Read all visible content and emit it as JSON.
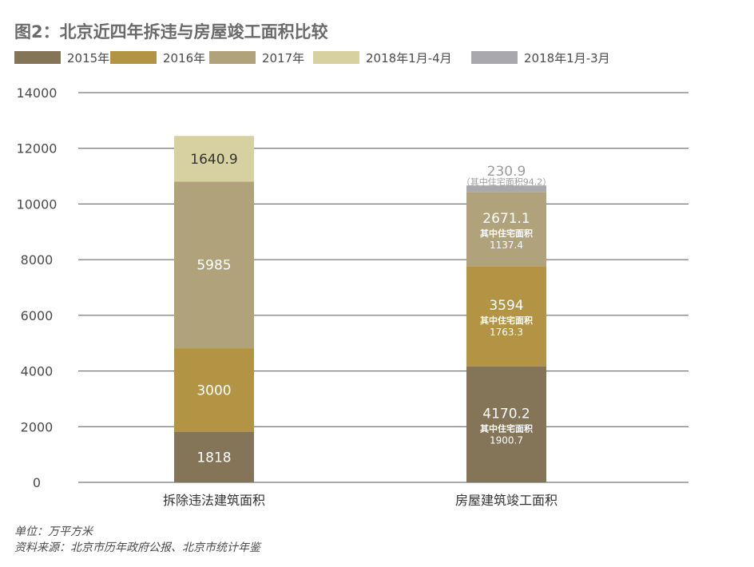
{
  "title": "图2：北京近四年拆违与房屋竣工面积比较",
  "unit_note": "单位：万平方米",
  "source_note": "资料来源：北京市历年政府公报、北京市统计年鉴",
  "colors": {
    "2015": "#847458",
    "2016": "#b39444",
    "2017": "#b0a27a",
    "2018a": "#d7d1a1",
    "2018b": "#a9a9ad",
    "grid": "#555555",
    "label_dark": "#333333",
    "label_light": "#ffffff",
    "label_grey": "#9b9b9b"
  },
  "chart_data": {
    "type": "bar",
    "stacked": true,
    "title": "图2：北京近四年拆违与房屋竣工面积比较",
    "ylabel": "",
    "xlabel": "",
    "ylim": [
      0,
      14000
    ],
    "yticks": [
      0,
      2000,
      4000,
      6000,
      8000,
      10000,
      12000,
      14000
    ],
    "grid": true,
    "legend_position": "top-left",
    "categories": [
      "拆除违法建筑面积",
      "房屋建筑竣工面积"
    ],
    "series": [
      {
        "name": "2015年",
        "color_key": "2015",
        "values": [
          1818,
          4170.2
        ],
        "labels": [
          "1818",
          "4170.2"
        ],
        "sublabels": [
          null,
          {
            "text": "其中住宅面积",
            "value": "1900.7"
          }
        ]
      },
      {
        "name": "2016年",
        "color_key": "2016",
        "values": [
          3000,
          3594
        ],
        "labels": [
          "3000",
          "3594"
        ],
        "sublabels": [
          null,
          {
            "text": "其中住宅面积",
            "value": "1763.3"
          }
        ]
      },
      {
        "name": "2017年",
        "color_key": "2017",
        "values": [
          5985,
          2671.1
        ],
        "labels": [
          "5985",
          "2671.1"
        ],
        "sublabels": [
          null,
          {
            "text": "其中住宅面积",
            "value": "1137.4"
          }
        ]
      },
      {
        "name": "2018年1月-4月",
        "color_key": "2018a",
        "values": [
          1640.9,
          0
        ],
        "labels": [
          "1640.9",
          null
        ],
        "sublabels": [
          null,
          null
        ]
      },
      {
        "name": "2018年1月-3月",
        "color_key": "2018b",
        "values": [
          0,
          230.9
        ],
        "labels": [
          null,
          "230.9"
        ],
        "sublabels": [
          null,
          {
            "text": "（其中住宅面积94.2）"
          }
        ]
      }
    ]
  }
}
